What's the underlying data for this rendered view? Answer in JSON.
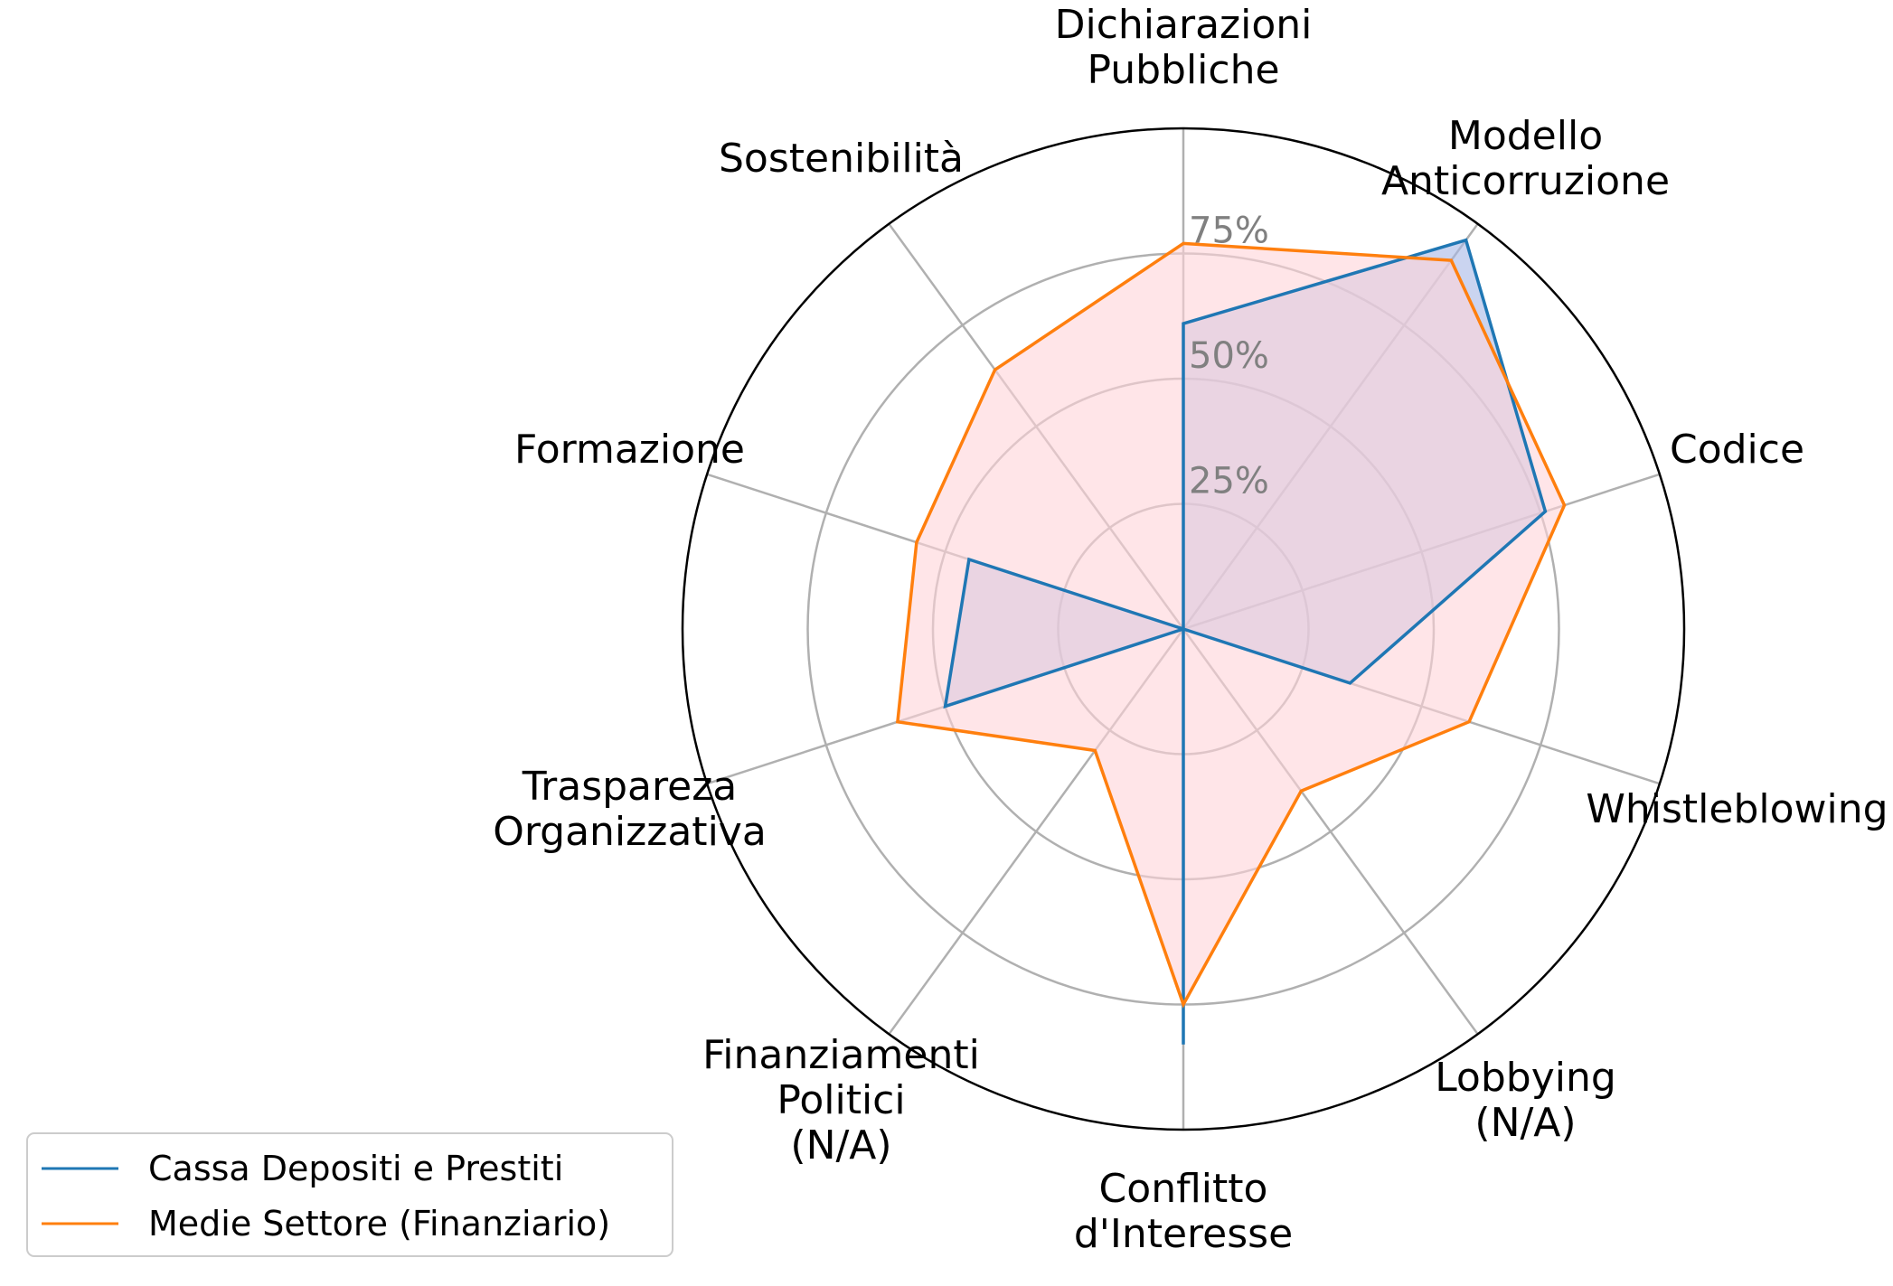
{
  "chart_data": {
    "type": "radar",
    "categories": [
      [
        "Dichiarazioni",
        "Pubbliche"
      ],
      [
        "Modello",
        "Anticorruzione"
      ],
      [
        "Codice"
      ],
      [
        "Whistleblowing"
      ],
      [
        "Lobbying",
        "(N/A)"
      ],
      [
        "Conflitto",
        "d'Interesse"
      ],
      [
        "Finanziamenti",
        "Politici",
        "(N/A)"
      ],
      [
        "Traspareza",
        "Organizzativa"
      ],
      [
        "Formazione"
      ],
      [
        "Sostenibilità"
      ]
    ],
    "rmax": 100,
    "rticks": [
      25,
      50,
      75
    ],
    "rtick_labels": [
      "25%",
      "50%",
      "75%"
    ],
    "grid": true,
    "series": [
      {
        "name": "Cassa Depositi e Prestiti",
        "values": [
          61,
          96,
          76,
          35,
          0,
          83,
          0,
          50,
          45,
          0
        ],
        "color": "#1f77b4"
      },
      {
        "name": "Medie Settore (Finanziario)",
        "values": [
          77,
          91,
          80,
          60,
          40,
          75,
          30,
          60,
          56,
          64
        ],
        "color": "#ff7f0e"
      }
    ],
    "fill_colors": [
      "#a6b8e6",
      "#ffd4d8"
    ],
    "legend": {
      "placement": "lower-left",
      "entries": [
        "Cassa Depositi e Prestiti",
        "Medie Settore (Finanziario)"
      ]
    }
  }
}
